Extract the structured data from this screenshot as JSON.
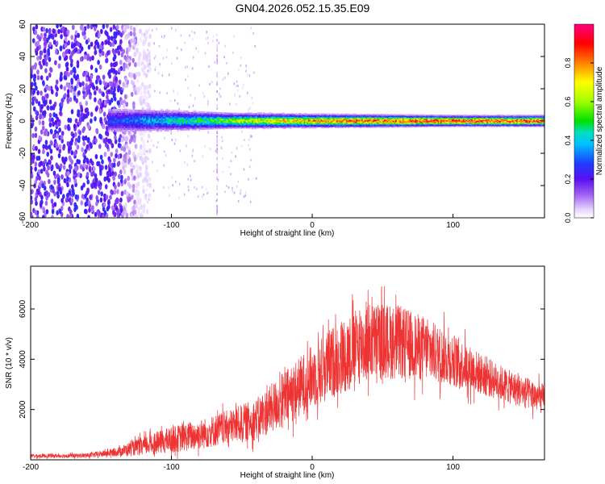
{
  "title": "GN04.2026.052.15.35.E09",
  "chart_data": [
    {
      "type": "heatmap",
      "title": "",
      "xlabel": "Height of straight line (km)",
      "ylabel": "Frequency (Hz)",
      "xlim": [
        -200,
        165
      ],
      "ylim": [
        -60,
        60
      ],
      "xticks": [
        -200,
        -100,
        0,
        100
      ],
      "yticks": [
        -60,
        -40,
        -20,
        0,
        20,
        40,
        60
      ],
      "grid": false,
      "colorbar": {
        "label": "Normalized spectral amplitude",
        "range": [
          0,
          1
        ],
        "ticks": [
          0.0,
          0.2,
          0.4,
          0.6,
          0.8
        ],
        "colormap": [
          "#ffffff",
          "#d6b4ff",
          "#8a2be2",
          "#2020ff",
          "#00c0ff",
          "#00e0c0",
          "#00e000",
          "#a0ff00",
          "#ffff00",
          "#ff8000",
          "#ff0000",
          "#ff0080"
        ]
      },
      "features": {
        "main_band_center_hz": 0,
        "band_half_width_hz": [
          {
            "x": -140,
            "hz": 10
          },
          {
            "x": -100,
            "hz": 8
          },
          {
            "x": -60,
            "hz": 6
          },
          {
            "x": 0,
            "hz": 5
          },
          {
            "x": 100,
            "hz": 4
          },
          {
            "x": 165,
            "hz": 4
          }
        ],
        "band_peak_amplitude": [
          {
            "x": -140,
            "amp": 0.3
          },
          {
            "x": -100,
            "amp": 0.45
          },
          {
            "x": -60,
            "amp": 0.6
          },
          {
            "x": -20,
            "amp": 0.75
          },
          {
            "x": 40,
            "amp": 0.9
          },
          {
            "x": 100,
            "amp": 0.95
          },
          {
            "x": 165,
            "amp": 0.95
          }
        ],
        "broadband_noise_x_range": [
          -200,
          -120
        ]
      }
    },
    {
      "type": "line",
      "title": "",
      "xlabel": "Height of straight line (km)",
      "ylabel": "SNR (10 * v/v)",
      "xlim": [
        -200,
        165
      ],
      "ylim": [
        0,
        7700
      ],
      "xticks": [
        -200,
        -100,
        0,
        100
      ],
      "yticks": [
        2000,
        4000,
        6000
      ],
      "grid": false,
      "series": [
        {
          "color": "#ee3333",
          "envelope": {
            "x": [
              -200,
              -160,
              -140,
              -120,
              -100,
              -80,
              -60,
              -40,
              -20,
              0,
              20,
              40,
              60,
              80,
              100,
              120,
              140,
              165
            ],
            "mean": [
              150,
              170,
              300,
              550,
              800,
              1000,
              1300,
              1600,
              2400,
              3300,
              4100,
              4700,
              4700,
              4400,
              4000,
              3400,
              2900,
              2400
            ],
            "spread": [
              100,
              120,
              220,
              500,
              700,
              800,
              900,
              1100,
              1500,
              1700,
              2000,
              2100,
              2000,
              1700,
              1400,
              1100,
              900,
              800
            ]
          }
        }
      ]
    }
  ]
}
